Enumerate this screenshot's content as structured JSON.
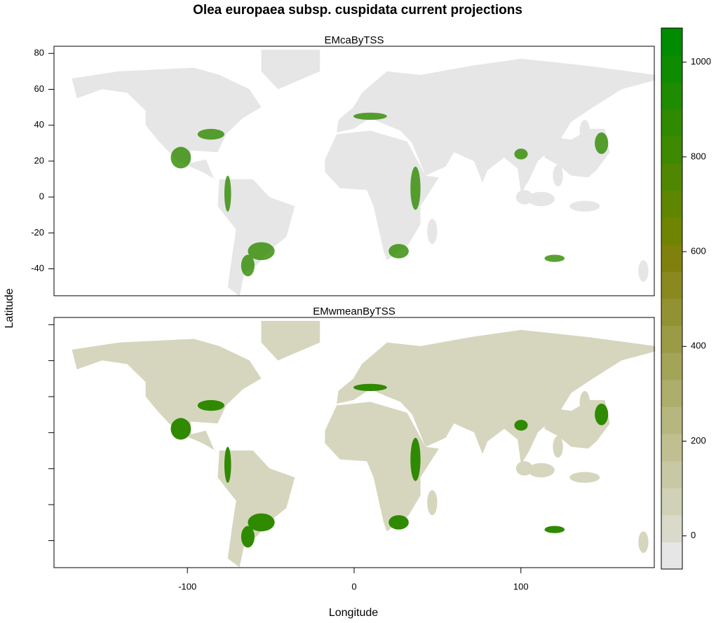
{
  "chart_data": {
    "type": "raster-map",
    "title": "Olea europaea subsp. cuspidata current projections",
    "x_label": "Longitude",
    "y_label": "Latitude",
    "panels": [
      {
        "title": "EMcaByTSS"
      },
      {
        "title": "EMwmeanByTSS"
      }
    ],
    "xlim": [
      -180,
      180
    ],
    "xticks": [
      -100,
      0,
      100
    ],
    "ylim": [
      -55,
      84
    ],
    "yticks": [
      -40,
      -20,
      0,
      20,
      40,
      60,
      80
    ],
    "zlim": [
      -70,
      1072
    ],
    "zticks": [
      0,
      200,
      400,
      600,
      800,
      1000
    ],
    "colors": [
      "#e6e6e6",
      "#dadacb",
      "#d1d1b8",
      "#c8c8a5",
      "#bfbf92",
      "#b6b67f",
      "#adad6c",
      "#a4a459",
      "#9b9b46",
      "#929233",
      "#898920",
      "#80800d",
      "#6f8400",
      "#5f8600",
      "#4f8800",
      "#3f8900",
      "#2f8a00",
      "#1f8b00",
      "#0f8b00",
      "#008b00"
    ]
  }
}
